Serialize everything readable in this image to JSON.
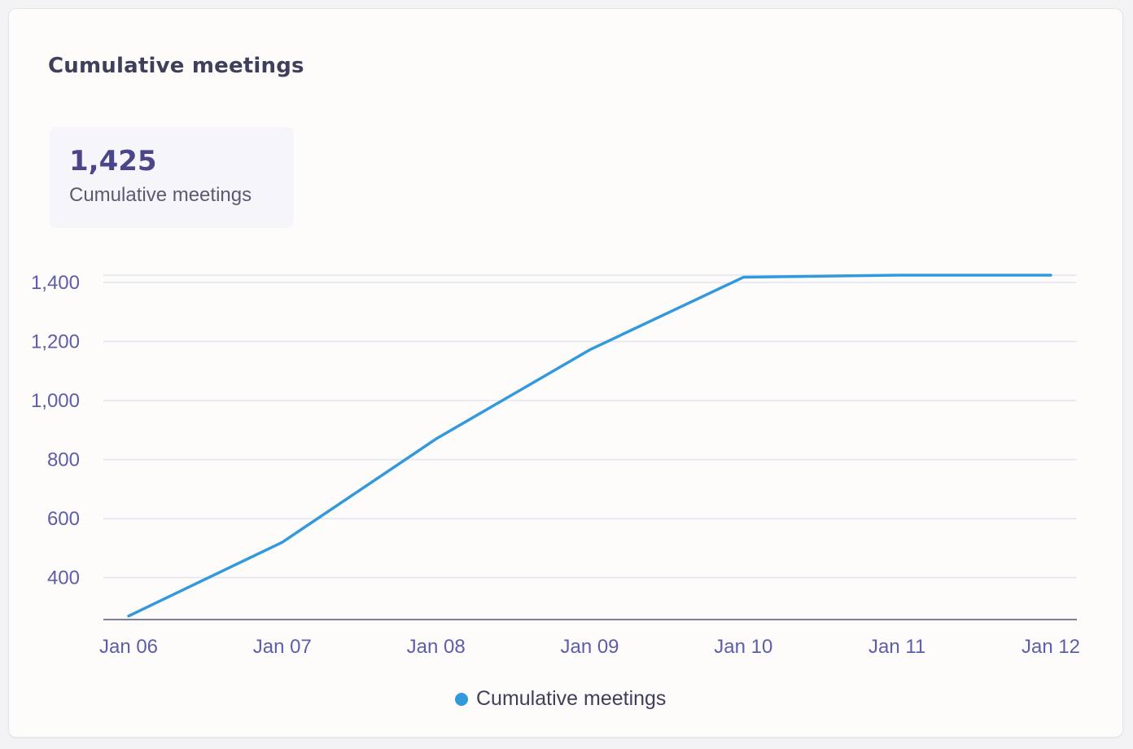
{
  "card": {
    "title": "Cumulative meetings"
  },
  "stat": {
    "value": "1,425",
    "label": "Cumulative meetings"
  },
  "colors": {
    "series": "#3399dd",
    "grid": "#e4e4f0",
    "axis": "#55557a",
    "tick_text": "#5c5ea8"
  },
  "chart_data": {
    "type": "line",
    "title": "",
    "xlabel": "",
    "ylabel": "",
    "categories": [
      "Jan 06",
      "Jan 07",
      "Jan 08",
      "Jan 09",
      "Jan 10",
      "Jan 11",
      "Jan 12"
    ],
    "y_ticks": [
      400,
      600,
      800,
      1000,
      1200,
      1400
    ],
    "y_tick_labels": [
      "400",
      "600",
      "800",
      "1,000",
      "1,200",
      "1,400"
    ],
    "ylim": [
      258,
      1425
    ],
    "grid": true,
    "legend_position": "bottom-center",
    "series": [
      {
        "name": "Cumulative meetings",
        "values": [
          270,
          520,
          870,
          1172,
          1418,
          1425,
          1425
        ]
      }
    ]
  }
}
